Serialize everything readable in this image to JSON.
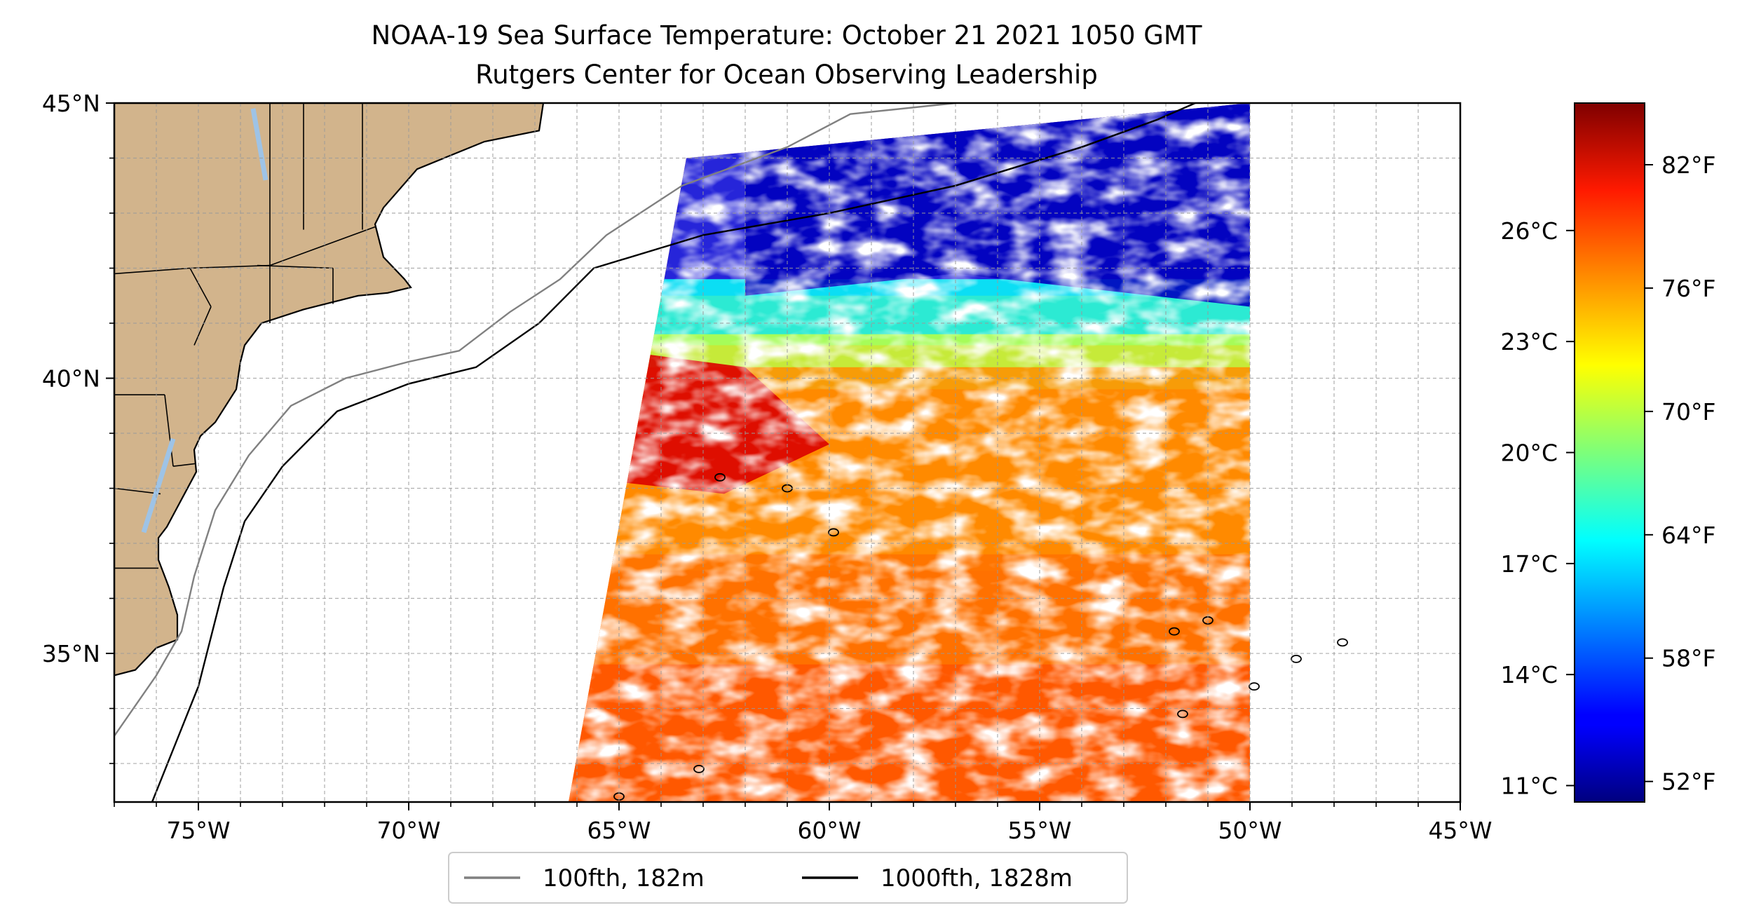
{
  "title": {
    "line1": "NOAA-19 Sea Surface Temperature: October 21 2021 1050 GMT",
    "line2": "Rutgers Center for Ocean Observing Leadership"
  },
  "map": {
    "lon_range": [
      -77,
      -45
    ],
    "lat_range": [
      32.3,
      45
    ],
    "lat_ticks": [
      {
        "value": 45,
        "label": "45°N"
      },
      {
        "value": 40,
        "label": "40°N"
      },
      {
        "value": 35,
        "label": "35°N"
      }
    ],
    "lon_ticks": [
      {
        "value": -75,
        "label": "75°W"
      },
      {
        "value": -70,
        "label": "70°W"
      },
      {
        "value": -65,
        "label": "65°W"
      },
      {
        "value": -60,
        "label": "60°W"
      },
      {
        "value": -55,
        "label": "55°W"
      },
      {
        "value": -50,
        "label": "50°W"
      },
      {
        "value": -45,
        "label": "45°W"
      }
    ],
    "gridlines": "dashed, every 1 degree",
    "swath": {
      "west": -66.2,
      "east": -50,
      "south": 32.3,
      "north": 44
    },
    "land_color": "#d2b48c",
    "lake_color": "#9ec3e6"
  },
  "legend": {
    "placement": "bottom-center",
    "entries": [
      {
        "label": "100fth, 182m",
        "color": "#808080"
      },
      {
        "label": "1000fth, 1828m",
        "color": "#000000"
      }
    ]
  },
  "colorbar": {
    "colormap": "jet",
    "range_F": [
      51,
      85
    ],
    "fahrenheit_ticks": [
      {
        "value": 82,
        "label": "82°F"
      },
      {
        "value": 76,
        "label": "76°F"
      },
      {
        "value": 70,
        "label": "70°F"
      },
      {
        "value": 64,
        "label": "64°F"
      },
      {
        "value": 58,
        "label": "58°F"
      },
      {
        "value": 52,
        "label": "52°F"
      }
    ],
    "celsius_ticks": [
      {
        "value": 26,
        "label": "26°C"
      },
      {
        "value": 23,
        "label": "23°C"
      },
      {
        "value": 20,
        "label": "20°C"
      },
      {
        "value": 17,
        "label": "17°C"
      },
      {
        "value": 14,
        "label": "14°C"
      },
      {
        "value": 11,
        "label": "11°C"
      }
    ]
  }
}
